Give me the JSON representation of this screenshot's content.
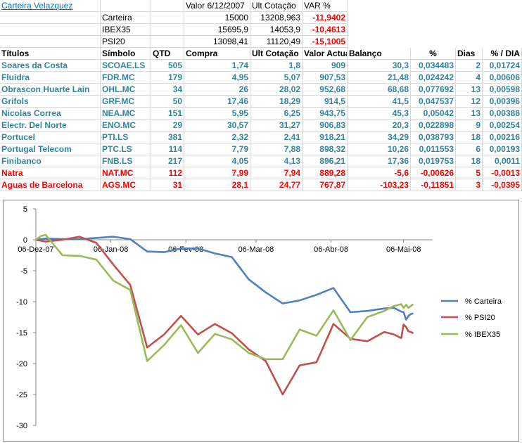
{
  "header": {
    "title": "Carteira Velazquez",
    "col_valor": "Valor 6/12/2007",
    "col_ult": "Ult Cotação",
    "col_var": "VAR %",
    "summary": [
      {
        "label": "Carteira",
        "valor": "15000",
        "ult": "13208,963",
        "var": "-11,9402"
      },
      {
        "label": "IBEX35",
        "valor": "15695,9",
        "ult": "14053,9",
        "var": "-10,4613"
      },
      {
        "label": "PSI20",
        "valor": "13098,41",
        "ult": "11120,49",
        "var": "-15,1005"
      }
    ]
  },
  "table": {
    "headers": [
      "Títulos",
      "Símbolo",
      "QTD",
      "Compra",
      "Ult Cotação",
      "Valor Actual",
      "Balanço",
      "%",
      "Dias",
      "% / DIA"
    ],
    "rows": [
      [
        "Soares da Costa",
        "SCOAE.LS",
        "505",
        "1,74",
        "1,8",
        "909",
        "30,3",
        "0,034483",
        "2",
        "0,01724"
      ],
      [
        "Fluidra",
        "FDR.MC",
        "179",
        "4,95",
        "5,07",
        "907,53",
        "21,48",
        "0,024242",
        "4",
        "0,00606"
      ],
      [
        "Obrascon Huarte Lain",
        "OHL.MC",
        "34",
        "26",
        "28,02",
        "952,68",
        "68,68",
        "0,077692",
        "13",
        "0,00598"
      ],
      [
        "Grifols",
        "GRF.MC",
        "50",
        "17,46",
        "18,29",
        "914,5",
        "41,5",
        "0,047537",
        "12",
        "0,00396"
      ],
      [
        "Nicolas Correa",
        "NEA.MC",
        "151",
        "5,95",
        "6,25",
        "943,75",
        "45,3",
        "0,05042",
        "13",
        "0,00388"
      ],
      [
        "Electr. Del Norte",
        "ENO.MC",
        "29",
        "30,57",
        "31,27",
        "906,83",
        "20,3",
        "0,022898",
        "9",
        "0,00254"
      ],
      [
        "Portucel",
        "PTI.LS",
        "381",
        "2,32",
        "2,41",
        "918,21",
        "34,29",
        "0,038793",
        "18",
        "0,00216"
      ],
      [
        "Portugal Telecom",
        "PTC.LS",
        "114",
        "7,79",
        "7,88",
        "898,32",
        "10,26",
        "0,011553",
        "6",
        "0,00193"
      ],
      [
        "Finibanco",
        "FNB.LS",
        "217",
        "4,05",
        "4,13",
        "896,21",
        "17,36",
        "0,019753",
        "18",
        "0,0011"
      ],
      [
        "Natra",
        "NAT.MC",
        "112",
        "7,99",
        "7,94",
        "889,28",
        "-5,6",
        "-0,00626",
        "5",
        "-0,0013"
      ],
      [
        "Aguas de Barcelona",
        "AGS.MC",
        "31",
        "28,1",
        "24,77",
        "767,87",
        "-103,23",
        "-0,11851",
        "3",
        "-0,0395"
      ]
    ],
    "colors": {
      "positive": "#31849B",
      "negative": "#FF0000"
    }
  },
  "chart_data": {
    "type": "line",
    "title": "",
    "xlabel": "",
    "ylabel": "",
    "ylim": [
      -30,
      5
    ],
    "yticks": [
      5,
      0,
      -5,
      -10,
      -15,
      -20,
      -25,
      -30
    ],
    "xlim": [
      "2007-12-06",
      "2008-05-18"
    ],
    "xticks": [
      "06-Dez-07",
      "06-Jan-08",
      "06-Fev-08",
      "06-Mar-08",
      "06-Abr-08",
      "06-Mai-08"
    ],
    "xtick_dates": [
      "2007-12-06",
      "2008-01-06",
      "2008-02-06",
      "2008-03-06",
      "2008-04-06",
      "2008-05-06"
    ],
    "legend_position": "right",
    "grid": false,
    "series": [
      {
        "name": "% Carteira",
        "color": "#4F81BD",
        "points": [
          [
            "2007-12-06",
            0
          ],
          [
            "2007-12-10",
            0.2
          ],
          [
            "2007-12-17",
            0.1
          ],
          [
            "2007-12-24",
            0.1
          ],
          [
            "2007-12-31",
            0.3
          ],
          [
            "2008-01-07",
            0.5
          ],
          [
            "2008-01-14",
            0.1
          ],
          [
            "2008-01-21",
            -1.9
          ],
          [
            "2008-01-28",
            -2.0
          ],
          [
            "2008-02-04",
            -1.4
          ],
          [
            "2008-02-11",
            -1.4
          ],
          [
            "2008-02-18",
            -2.2
          ],
          [
            "2008-02-25",
            -2.8
          ],
          [
            "2008-03-03",
            -6.4
          ],
          [
            "2008-03-10",
            -8.5
          ],
          [
            "2008-03-17",
            -10.3
          ],
          [
            "2008-03-24",
            -9.8
          ],
          [
            "2008-03-31",
            -8.9
          ],
          [
            "2008-04-07",
            -7.8
          ],
          [
            "2008-04-14",
            -11.7
          ],
          [
            "2008-04-21",
            -11.5
          ],
          [
            "2008-04-28",
            -11.1
          ],
          [
            "2008-05-02",
            -11.0
          ],
          [
            "2008-05-05",
            -11.6
          ],
          [
            "2008-05-06",
            -11.7
          ],
          [
            "2008-05-07",
            -12.9
          ],
          [
            "2008-05-08",
            -12.3
          ],
          [
            "2008-05-09",
            -12.0
          ],
          [
            "2008-05-10",
            -11.9
          ]
        ]
      },
      {
        "name": "% PSI20",
        "color": "#C0504D",
        "points": [
          [
            "2007-12-06",
            0
          ],
          [
            "2007-12-10",
            -0.3
          ],
          [
            "2007-12-17",
            0.0
          ],
          [
            "2007-12-24",
            0.5
          ],
          [
            "2007-12-31",
            -0.5
          ],
          [
            "2008-01-07",
            -4.0
          ],
          [
            "2008-01-14",
            -7.3
          ],
          [
            "2008-01-21",
            -17.4
          ],
          [
            "2008-01-28",
            -15.3
          ],
          [
            "2008-02-04",
            -12.3
          ],
          [
            "2008-02-11",
            -15.3
          ],
          [
            "2008-02-18",
            -13.6
          ],
          [
            "2008-02-25",
            -15.1
          ],
          [
            "2008-03-03",
            -17.7
          ],
          [
            "2008-03-10",
            -19.6
          ],
          [
            "2008-03-17",
            -25.0
          ],
          [
            "2008-03-24",
            -20.3
          ],
          [
            "2008-03-31",
            -19.8
          ],
          [
            "2008-04-07",
            -13.6
          ],
          [
            "2008-04-14",
            -16.0
          ],
          [
            "2008-04-21",
            -16.4
          ],
          [
            "2008-04-28",
            -14.9
          ],
          [
            "2008-05-02",
            -15.3
          ],
          [
            "2008-05-05",
            -15.9
          ],
          [
            "2008-05-06",
            -13.7
          ],
          [
            "2008-05-07",
            -14.1
          ],
          [
            "2008-05-08",
            -14.8
          ],
          [
            "2008-05-09",
            -14.9
          ],
          [
            "2008-05-10",
            -15.1
          ]
        ]
      },
      {
        "name": "% IBEX35",
        "color": "#9BBB59",
        "points": [
          [
            "2007-12-06",
            0
          ],
          [
            "2007-12-08",
            0.6
          ],
          [
            "2007-12-10",
            0.8
          ],
          [
            "2007-12-17",
            -2.5
          ],
          [
            "2007-12-24",
            -2.6
          ],
          [
            "2007-12-31",
            -3.2
          ],
          [
            "2008-01-07",
            -6.6
          ],
          [
            "2008-01-14",
            -8.1
          ],
          [
            "2008-01-21",
            -19.6
          ],
          [
            "2008-01-28",
            -17.0
          ],
          [
            "2008-02-04",
            -13.8
          ],
          [
            "2008-02-11",
            -18.3
          ],
          [
            "2008-02-18",
            -15.2
          ],
          [
            "2008-02-25",
            -16.1
          ],
          [
            "2008-03-03",
            -18.3
          ],
          [
            "2008-03-10",
            -19.3
          ],
          [
            "2008-03-17",
            -19.3
          ],
          [
            "2008-03-24",
            -14.5
          ],
          [
            "2008-03-31",
            -15.5
          ],
          [
            "2008-04-07",
            -11.4
          ],
          [
            "2008-04-14",
            -16.2
          ],
          [
            "2008-04-21",
            -12.5
          ],
          [
            "2008-04-28",
            -11.5
          ],
          [
            "2008-05-02",
            -10.7
          ],
          [
            "2008-05-05",
            -10.4
          ],
          [
            "2008-05-06",
            -11.0
          ],
          [
            "2008-05-07",
            -10.5
          ],
          [
            "2008-05-08",
            -11.0
          ],
          [
            "2008-05-09",
            -10.7
          ],
          [
            "2008-05-10",
            -10.4
          ]
        ]
      }
    ]
  }
}
